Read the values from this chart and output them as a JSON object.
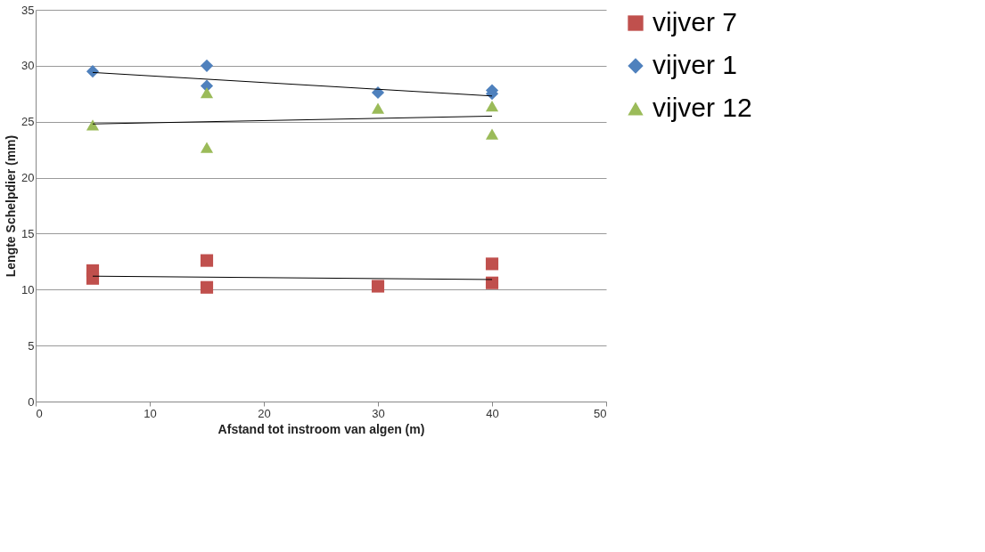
{
  "chart_data": {
    "type": "scatter",
    "xlabel": "Afstand tot instroom van algen (m)",
    "ylabel": "Lengte Schelpdier (mm)",
    "xlim": [
      0,
      50
    ],
    "xticks": [
      0,
      10,
      20,
      30,
      40,
      50
    ],
    "ylim": [
      0,
      35
    ],
    "yticks": [
      0,
      5,
      10,
      15,
      20,
      25,
      30,
      35
    ],
    "grid": "y",
    "legend": "right",
    "series": [
      {
        "name": "vijver 7",
        "color": "#c0504d",
        "marker": "square",
        "x": [
          5,
          5,
          15,
          15,
          30,
          40,
          40
        ],
        "values": [
          11.7,
          11.0,
          12.6,
          10.2,
          10.3,
          12.3,
          10.6
        ]
      },
      {
        "name": "vijver 1",
        "color": "#4f81bd",
        "marker": "diamond",
        "x": [
          5,
          15,
          15,
          30,
          40,
          40
        ],
        "values": [
          29.5,
          30.0,
          28.2,
          27.6,
          27.8,
          27.5
        ]
      },
      {
        "name": "vijver 12",
        "color": "#9bbb59",
        "marker": "triangle",
        "x": [
          5,
          15,
          15,
          30,
          40,
          40
        ],
        "values": [
          24.7,
          27.6,
          22.7,
          26.2,
          26.4,
          23.9
        ]
      },
      {
        "type": "line",
        "color": "#000000",
        "marker": "none",
        "x": [
          5,
          40
        ],
        "values": [
          29.4,
          27.3
        ]
      },
      {
        "type": "line",
        "color": "#000000",
        "marker": "none",
        "x": [
          5,
          40
        ],
        "values": [
          24.8,
          25.5
        ]
      },
      {
        "type": "line",
        "color": "#000000",
        "marker": "none",
        "x": [
          5,
          40
        ],
        "values": [
          11.2,
          10.9
        ]
      }
    ]
  }
}
